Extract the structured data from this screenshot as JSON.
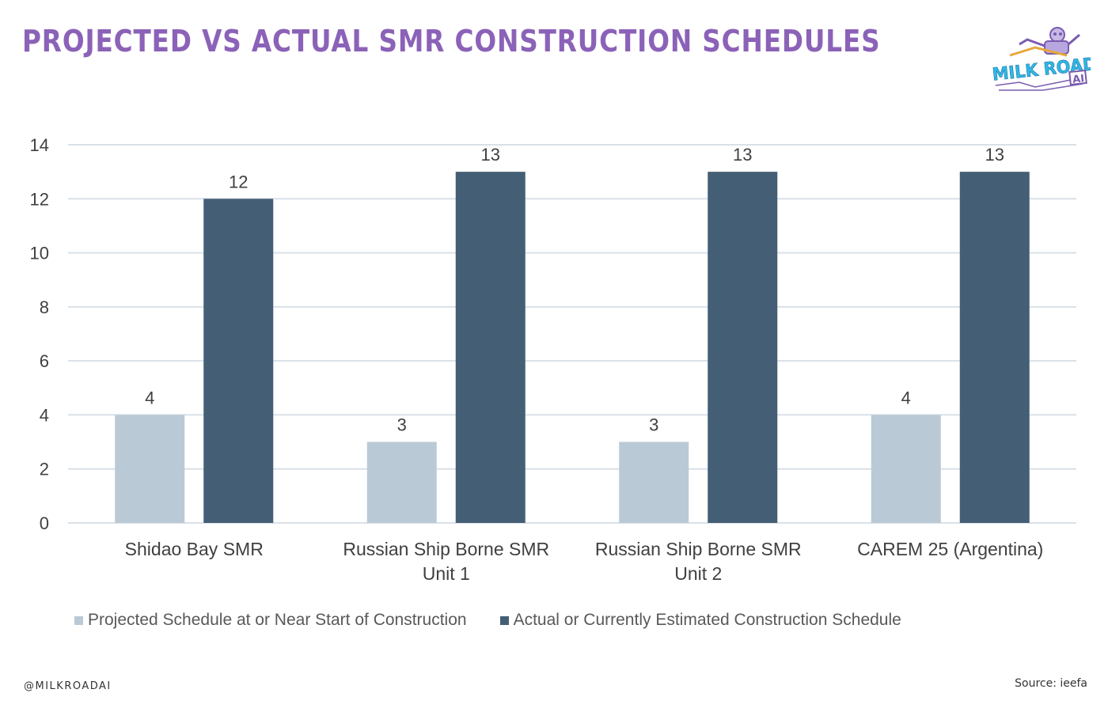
{
  "header": {
    "title": "PROJECTED VS ACTUAL SMR CONSTRUCTION SCHEDULES"
  },
  "logo": {
    "line1": "MILK ROAD",
    "line2": "AI"
  },
  "footer": {
    "handle": "@MILKROADAI",
    "source": "Source: ieefa"
  },
  "colors": {
    "title": "#8b62b8",
    "projected": "#b9cad6",
    "actual": "#445e75",
    "grid": "#d9e1e8",
    "text": "#595959"
  },
  "chart_data": {
    "type": "bar",
    "title": "",
    "xlabel": "",
    "ylabel": "",
    "ylim": [
      0,
      14
    ],
    "yticks": [
      0,
      2,
      4,
      6,
      8,
      10,
      12,
      14
    ],
    "grid": true,
    "legend_position": "bottom",
    "categories": [
      [
        "Shidao Bay SMR"
      ],
      [
        "Russian Ship Borne SMR",
        "Unit 1"
      ],
      [
        "Russian Ship Borne SMR",
        "Unit 2"
      ],
      [
        "CAREM 25 (Argentina)"
      ]
    ],
    "series": [
      {
        "name": "Projected Schedule at or Near Start of Construction",
        "values": [
          4,
          3,
          3,
          4
        ]
      },
      {
        "name": "Actual or Currently Estimated Construction Schedule",
        "values": [
          12,
          13,
          13,
          13
        ]
      }
    ]
  }
}
